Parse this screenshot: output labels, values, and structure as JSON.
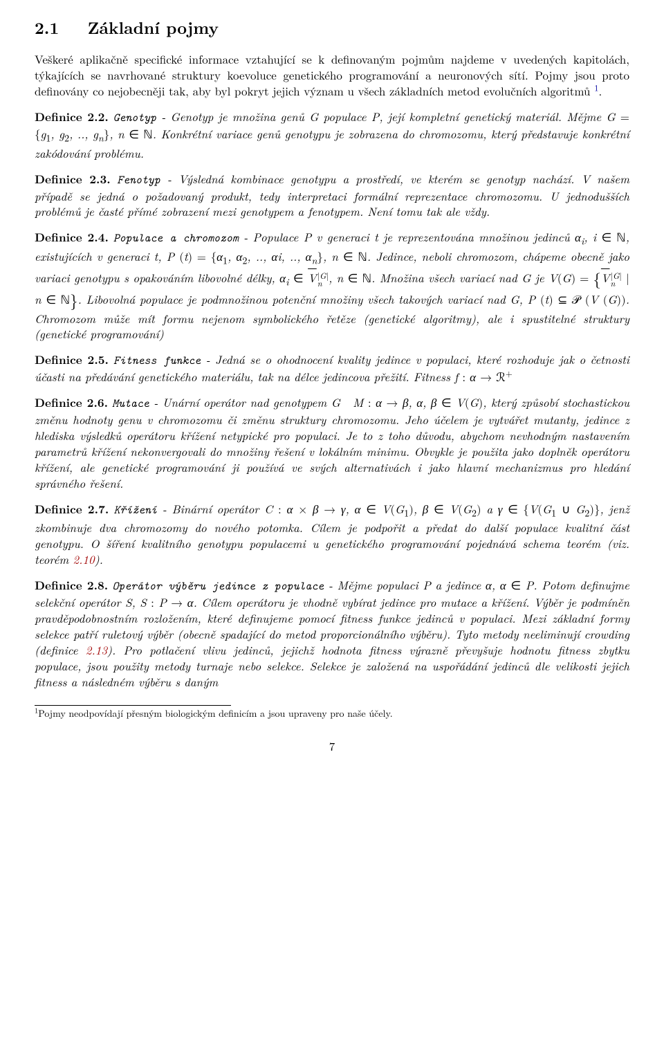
{
  "section": {
    "number": "2.1",
    "title": "Základní pojmy"
  },
  "intro": {
    "p1": "Veškeré aplikačně specifické informace vztahující se k definovaným pojmům najdeme v uvedených kapitolách, týkajících se navrhované struktury koevoluce genetického programování a neuronových sítí. Pojmy jsou proto definovány co nejobecněji tak, aby byl pokryt jejich význam u všech základních metod evolučních algoritmů",
    "footmark": "1",
    "p1_tail": "."
  },
  "defs": {
    "d22": {
      "head": "Definice 2.2.",
      "term": "Genotyp",
      "body_a": " - Genotyp je množina genů ",
      "body_b": " populace ",
      "body_c": ", její kompletní genetický materiál. Mějme ",
      "body_d": ". Konkrétní variace genů genotypu je zobrazena do chromozomu, který představuje konkrétní zakódování problému."
    },
    "d23": {
      "head": "Definice 2.3.",
      "term": "Fenotyp",
      "body": " - Výsledná kombinace genotypu a prostředí, ve kterém se genotyp nachází. V našem případě se jedná o požadovaný produkt, tedy interpretaci formální reprezentace chromozomu. U jednodušších problémů je časté přímé zobrazení mezi genotypem a fenotypem. Není tomu tak ale vždy."
    },
    "d24": {
      "head": "Definice 2.4.",
      "term": "Populace a chromozom",
      "body_a": " - Populace ",
      "body_b": " v generaci ",
      "body_c": " je reprezentována množinou jedinců ",
      "body_d": ", existujících v generaci ",
      "body_e": ". Jedince, neboli chromozom, chápeme obecně jako variaci genotypu s opakováním libovolné délky, ",
      "body_f": ". Množina všech variací nad ",
      "body_g": " je ",
      "body_h": ". Libovolná populace je podmnožinou potenční množiny všech takových variací nad ",
      "body_i": ". Chromozom může mít formu nejenom symbolického řetěze (genetické algoritmy), ale i spustitelné struktury (genetické programování)"
    },
    "d25": {
      "head": "Definice 2.5.",
      "term": "Fitness funkce",
      "body_a": " - Jedná se o ohodnocení kvality jedince v populaci, které rozhoduje jak o četnosti účasti na předávání genetického materiálu, tak na délce jedincova přežití. Fitness "
    },
    "d26": {
      "head": "Definice 2.6.",
      "term": "Mutace",
      "body_a": " - Unární operátor nad genotypem ",
      "body_b": ", který způsobí stochastickou změnu hodnoty genu v chromozomu či změnu struktury chromozomu. Jeho účelem je vytvářet mutanty, jedince z hlediska výsledků operátoru křížení netypické pro populaci. Je to z toho důvodu, abychom nevhodným nastavením parametrů křížení nekonvergovali do množiny řešení v lokálním minimu. Obvykle je použita jako doplněk operátoru křížení, ale genetické programování ji používá ve svých alternativách i jako hlavní mechanizmus pro hledání správného řešení."
    },
    "d27": {
      "head": "Definice 2.7.",
      "term": "Křížení",
      "body_a": " - Binární operátor ",
      "body_b": " a ",
      "body_c": ", jenž zkombinuje dva chromozomy do nového potomka. Cílem je podpořit a předat do další populace kvalitní část genotypu. O šíření kvalitního genotypu populacemi u genetického programování pojednává schema teorém (viz. teorém ",
      "ref": "2.10",
      "body_d": ")."
    },
    "d28": {
      "head": "Definice 2.8.",
      "term": "Operátor výběru jedince z populace",
      "body_a": " - Mějme populaci ",
      "body_b": " a jedince ",
      "body_c": ". Potom definujme selekční operátor ",
      "body_d": ". Cílem operátoru je vhodně vybírat jedince pro mutace a křížení. Výběr je podmíněn pravděpodobnostním rozložením, které definujeme pomocí fitness funkce jedinců v populaci. Mezi základní formy selekce patří ruletový výběr (obecně spadající do metod proporcionálního výběru). Tyto metody neeliminují crowding (definice ",
      "ref": "2.13",
      "body_e": "). Pro potlačení vlivu jedinců, jejichž hodnota fitness výrazně převyšuje hodnotu fitness zbytku populace, jsou použity metody turnaje nebo selekce. Selekce je založená na uspořádání jedinců dle velikosti jejich fitness a následném výběru s daným"
    }
  },
  "footnote": {
    "mark": "1",
    "text": "Pojmy neodpovídají přesným biologickým definicím a jsou upraveny pro naše účely."
  },
  "pagenum": "7"
}
